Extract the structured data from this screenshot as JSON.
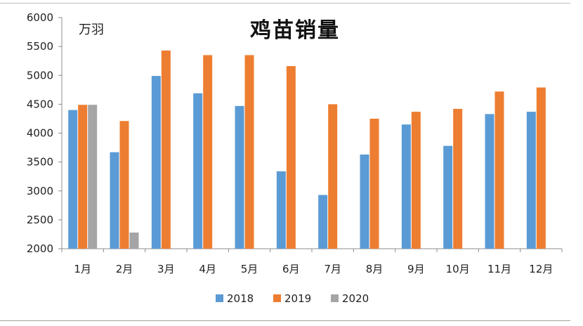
{
  "chart_data": {
    "type": "bar",
    "title": "鸡苗销量",
    "unit_label": "万羽",
    "xlabel": "",
    "ylabel": "",
    "categories": [
      "1月",
      "2月",
      "3月",
      "4月",
      "5月",
      "6月",
      "7月",
      "8月",
      "9月",
      "10月",
      "11月",
      "12月"
    ],
    "series": [
      {
        "name": "2018",
        "color": "#5b9bd5",
        "values": [
          4400,
          3670,
          4990,
          4690,
          4470,
          3340,
          2930,
          3630,
          4150,
          3780,
          4330,
          4370
        ]
      },
      {
        "name": "2019",
        "color": "#ed7d31",
        "values": [
          4490,
          4210,
          5430,
          5350,
          5350,
          5160,
          4500,
          4250,
          4370,
          4420,
          4720,
          4790
        ]
      },
      {
        "name": "2020",
        "color": "#a5a5a5",
        "values": [
          4490,
          2280,
          null,
          null,
          null,
          null,
          null,
          null,
          null,
          null,
          null,
          null
        ]
      }
    ],
    "ylim": [
      2000,
      6000
    ],
    "yticks": [
      2000,
      2500,
      3000,
      3500,
      4000,
      4500,
      5000,
      5500,
      6000
    ],
    "grid": false,
    "legend_position": "bottom"
  }
}
